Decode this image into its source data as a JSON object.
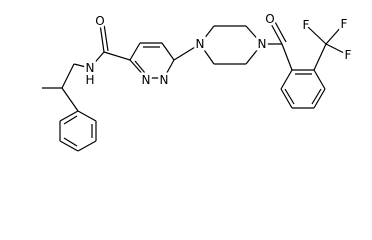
{
  "atoms": [
    "O",
    "N",
    "H",
    "N",
    "N",
    "N",
    "N",
    "O",
    "F",
    "F",
    "F"
  ]
}
